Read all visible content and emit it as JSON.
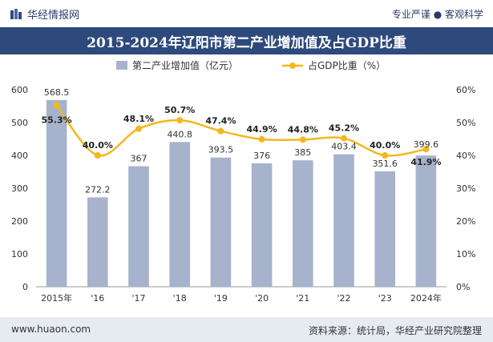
{
  "header": {
    "brand": "华经情报网",
    "tagline": "专业严谨 ● 客观科学"
  },
  "footer": {
    "url": "www.huaon.com",
    "source": "资料来源：统计局，华经产业研究院整理"
  },
  "colors": {
    "bar": "#a7b3cc",
    "line": "#f2b81c",
    "title_bg": "#2e4a7d"
  },
  "chart_data": {
    "type": "bar",
    "title": "2015-2024年辽阳市第二产业增加值及占GDP比重",
    "categories": [
      "2015年",
      "'16",
      "'17",
      "'18",
      "'19",
      "'20",
      "'21",
      "'22",
      "'23",
      "2024年"
    ],
    "series": [
      {
        "name": "第二产业增加值（亿元）",
        "type": "bar",
        "axis": "left",
        "values": [
          568.5,
          272.2,
          367,
          440.8,
          393.5,
          376,
          385,
          403.4,
          351.6,
          399.6
        ],
        "labels": [
          "568.5",
          "272.2",
          "367",
          "440.8",
          "393.5",
          "376",
          "385",
          "403.4",
          "351.6",
          "399.6"
        ]
      },
      {
        "name": "占GDP比重（%）",
        "type": "line",
        "axis": "right",
        "values": [
          55.3,
          40.0,
          48.1,
          50.7,
          47.4,
          44.9,
          44.8,
          45.2,
          40.0,
          41.9
        ],
        "labels": [
          "55.3%",
          "40.0%",
          "48.1%",
          "50.7%",
          "47.4%",
          "44.9%",
          "44.8%",
          "45.2%",
          "40.0%",
          "41.9%"
        ]
      }
    ],
    "ylim_left": [
      0,
      600
    ],
    "yticks_left": [
      "0",
      "100",
      "200",
      "300",
      "400",
      "500",
      "600"
    ],
    "ylim_right": [
      0,
      60
    ],
    "yticks_right": [
      "0%",
      "10%",
      "20%",
      "30%",
      "40%",
      "50%",
      "60%"
    ],
    "grid": false,
    "legend_position": "top-center"
  }
}
